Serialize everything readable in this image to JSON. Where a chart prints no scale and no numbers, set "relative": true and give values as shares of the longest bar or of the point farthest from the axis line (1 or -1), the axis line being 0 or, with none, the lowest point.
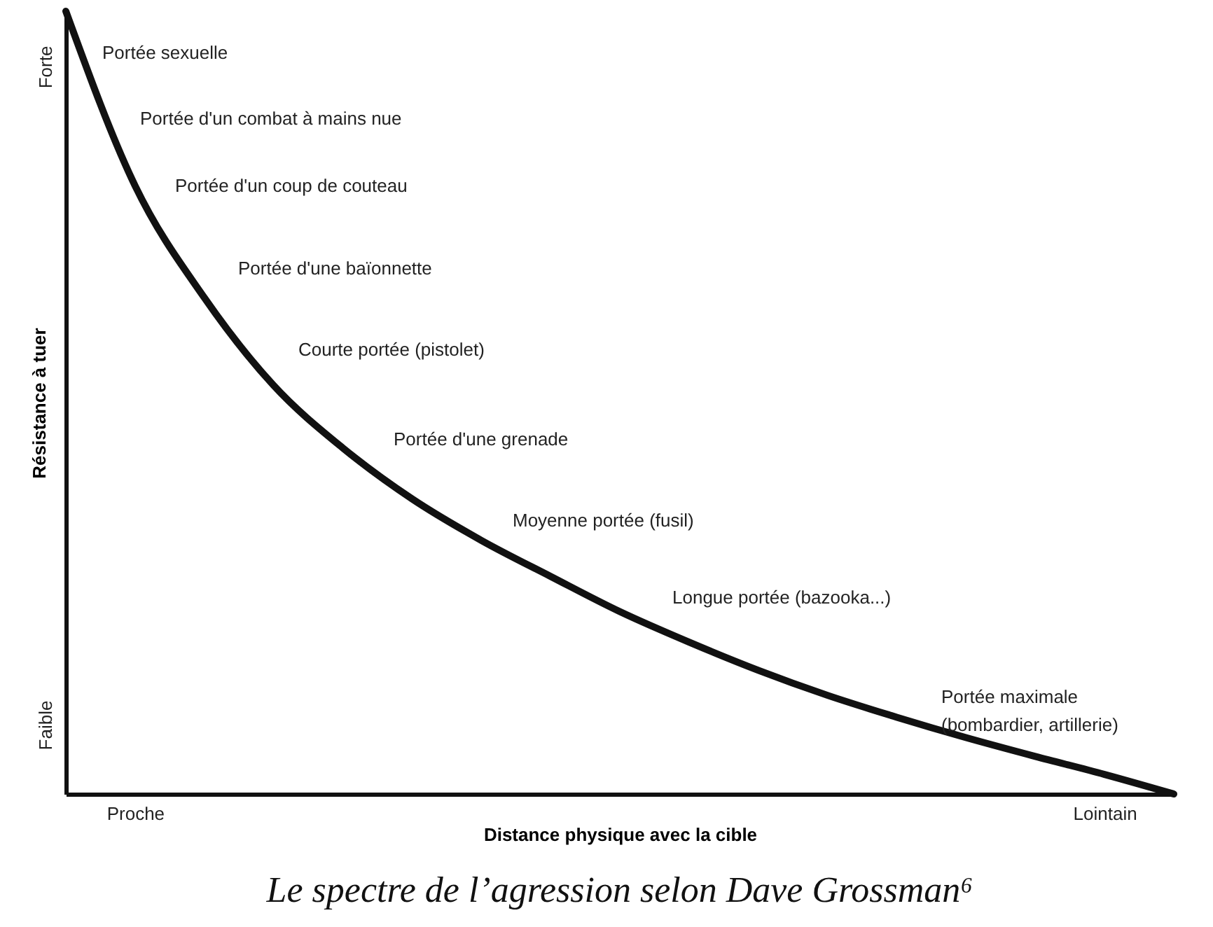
{
  "chart_data": {
    "type": "line",
    "title": "Le spectre de l’agression selon Dave Grossman⁶",
    "xlabel": "Distance physique avec la cible",
    "ylabel": "Résistance à tuer",
    "relative": true,
    "color": "#111111",
    "categories": [
      null,
      "Proche",
      null,
      null,
      null,
      null,
      null,
      null,
      null,
      null,
      null,
      null,
      null,
      null,
      null,
      "Lointain",
      null
    ],
    "values": [
      1,
      0.777,
      0.634,
      0.522,
      0.442,
      0.377,
      0.324,
      0.278,
      0.233,
      0.194,
      0.158,
      0.126,
      0.098,
      0.072,
      0.048,
      0.025,
      0
    ],
    "annotations": [
      "Forte",
      "Faible",
      "Portée sexuelle",
      "Portée d'un combat à mains nue",
      "Portée d'un coup de couteau",
      "Portée d'une baïonnette",
      "Courte portée (pistolet)",
      "Portée d'une grenade",
      "Moyenne portée (fusil)",
      "Longue portée (bazooka...)",
      "Portée maximale\n(bombardier, artillerie)"
    ],
    "grid": false,
    "marker": "none",
    "line_style": "solid"
  }
}
